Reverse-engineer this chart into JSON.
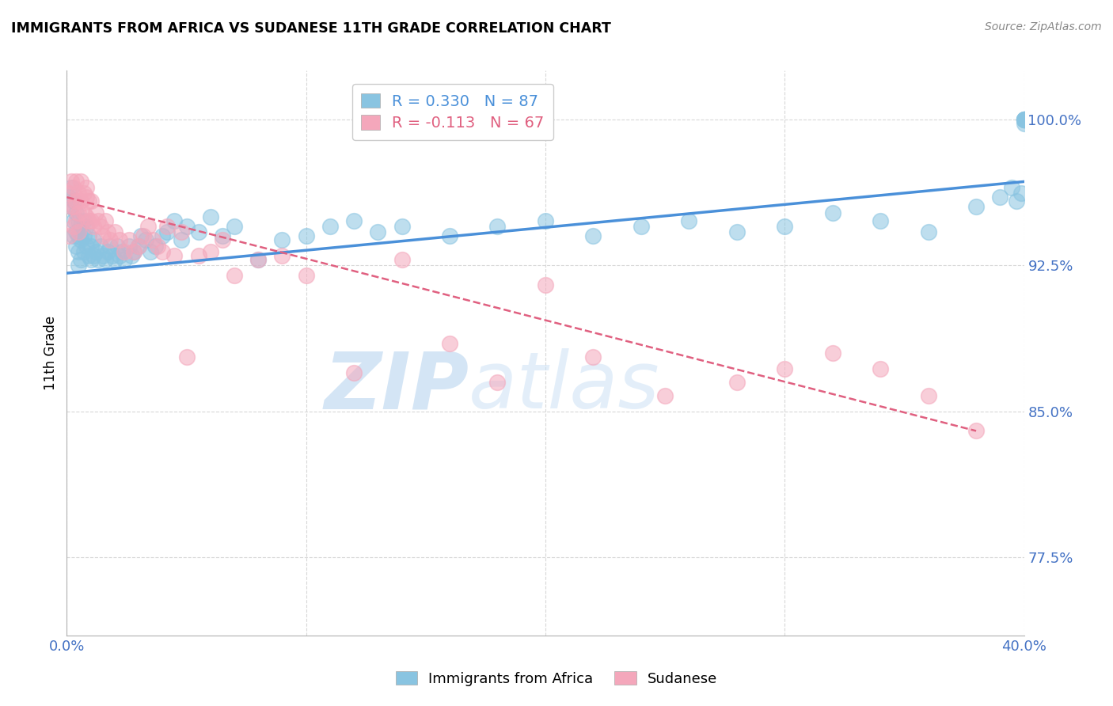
{
  "title": "IMMIGRANTS FROM AFRICA VS SUDANESE 11TH GRADE CORRELATION CHART",
  "source": "Source: ZipAtlas.com",
  "ylabel": "11th Grade",
  "ytick_labels": [
    "100.0%",
    "92.5%",
    "85.0%",
    "77.5%"
  ],
  "ytick_values": [
    1.0,
    0.925,
    0.85,
    0.775
  ],
  "xlim": [
    0.0,
    0.4
  ],
  "ylim": [
    0.735,
    1.025
  ],
  "blue_R": "R = 0.330",
  "blue_N": "N = 87",
  "pink_R": "R = -0.113",
  "pink_N": "N = 67",
  "blue_color": "#89c4e1",
  "pink_color": "#f4a7bb",
  "blue_line_color": "#4a90d9",
  "pink_line_color": "#e06080",
  "watermark_zip": "ZIP",
  "watermark_atlas": "atlas",
  "legend_label_blue": "Immigrants from Africa",
  "legend_label_pink": "Sudanese",
  "blue_scatter_x": [
    0.001,
    0.002,
    0.002,
    0.003,
    0.003,
    0.003,
    0.004,
    0.004,
    0.004,
    0.005,
    0.005,
    0.005,
    0.005,
    0.006,
    0.006,
    0.006,
    0.007,
    0.007,
    0.007,
    0.008,
    0.008,
    0.009,
    0.009,
    0.01,
    0.01,
    0.011,
    0.011,
    0.012,
    0.013,
    0.014,
    0.015,
    0.016,
    0.017,
    0.018,
    0.019,
    0.02,
    0.021,
    0.022,
    0.023,
    0.024,
    0.026,
    0.027,
    0.028,
    0.03,
    0.031,
    0.033,
    0.035,
    0.037,
    0.04,
    0.042,
    0.045,
    0.048,
    0.05,
    0.055,
    0.06,
    0.065,
    0.07,
    0.08,
    0.09,
    0.1,
    0.11,
    0.12,
    0.13,
    0.14,
    0.16,
    0.18,
    0.2,
    0.22,
    0.24,
    0.26,
    0.28,
    0.3,
    0.32,
    0.34,
    0.36,
    0.38,
    0.39,
    0.395,
    0.397,
    0.399,
    0.4,
    0.4,
    0.4,
    0.4,
    0.4,
    0.4,
    0.4
  ],
  "blue_scatter_y": [
    0.96,
    0.955,
    0.965,
    0.958,
    0.948,
    0.94,
    0.952,
    0.942,
    0.935,
    0.948,
    0.94,
    0.932,
    0.925,
    0.945,
    0.938,
    0.928,
    0.94,
    0.932,
    0.948,
    0.935,
    0.945,
    0.93,
    0.94,
    0.935,
    0.928,
    0.938,
    0.93,
    0.932,
    0.928,
    0.935,
    0.93,
    0.928,
    0.932,
    0.935,
    0.93,
    0.928,
    0.935,
    0.93,
    0.932,
    0.928,
    0.935,
    0.93,
    0.932,
    0.935,
    0.94,
    0.938,
    0.932,
    0.935,
    0.94,
    0.942,
    0.948,
    0.938,
    0.945,
    0.942,
    0.95,
    0.94,
    0.945,
    0.928,
    0.938,
    0.94,
    0.945,
    0.948,
    0.942,
    0.945,
    0.94,
    0.945,
    0.948,
    0.94,
    0.945,
    0.948,
    0.942,
    0.945,
    0.952,
    0.948,
    0.942,
    0.955,
    0.96,
    0.965,
    0.958,
    0.962,
    0.998,
    1.0,
    1.0,
    1.0,
    1.0,
    1.0,
    1.0
  ],
  "pink_scatter_x": [
    0.001,
    0.001,
    0.002,
    0.002,
    0.003,
    0.003,
    0.003,
    0.004,
    0.004,
    0.004,
    0.005,
    0.005,
    0.005,
    0.006,
    0.006,
    0.007,
    0.007,
    0.008,
    0.008,
    0.008,
    0.009,
    0.009,
    0.01,
    0.01,
    0.011,
    0.012,
    0.013,
    0.014,
    0.015,
    0.016,
    0.017,
    0.018,
    0.02,
    0.022,
    0.024,
    0.026,
    0.028,
    0.03,
    0.032,
    0.034,
    0.036,
    0.038,
    0.04,
    0.042,
    0.045,
    0.048,
    0.05,
    0.055,
    0.06,
    0.065,
    0.07,
    0.08,
    0.09,
    0.1,
    0.12,
    0.14,
    0.16,
    0.18,
    0.2,
    0.22,
    0.25,
    0.28,
    0.3,
    0.32,
    0.34,
    0.36,
    0.38
  ],
  "pink_scatter_y": [
    0.962,
    0.94,
    0.968,
    0.955,
    0.965,
    0.955,
    0.945,
    0.968,
    0.958,
    0.948,
    0.962,
    0.952,
    0.942,
    0.968,
    0.958,
    0.962,
    0.952,
    0.96,
    0.95,
    0.965,
    0.958,
    0.948,
    0.958,
    0.948,
    0.945,
    0.952,
    0.948,
    0.945,
    0.94,
    0.948,
    0.942,
    0.938,
    0.942,
    0.938,
    0.932,
    0.938,
    0.932,
    0.935,
    0.94,
    0.945,
    0.938,
    0.935,
    0.932,
    0.945,
    0.93,
    0.942,
    0.878,
    0.93,
    0.932,
    0.938,
    0.92,
    0.928,
    0.93,
    0.92,
    0.87,
    0.928,
    0.885,
    0.865,
    0.915,
    0.878,
    0.858,
    0.865,
    0.872,
    0.88,
    0.872,
    0.858,
    0.84
  ],
  "blue_trendline_x": [
    0.0,
    0.4
  ],
  "blue_trendline_y": [
    0.921,
    0.968
  ],
  "pink_trendline_x": [
    0.0,
    0.38
  ],
  "pink_trendline_y": [
    0.96,
    0.84
  ],
  "grid_color": "#d8d8d8",
  "background_color": "#ffffff",
  "tick_color": "#4472c4",
  "axis_color": "#b0b0b0"
}
